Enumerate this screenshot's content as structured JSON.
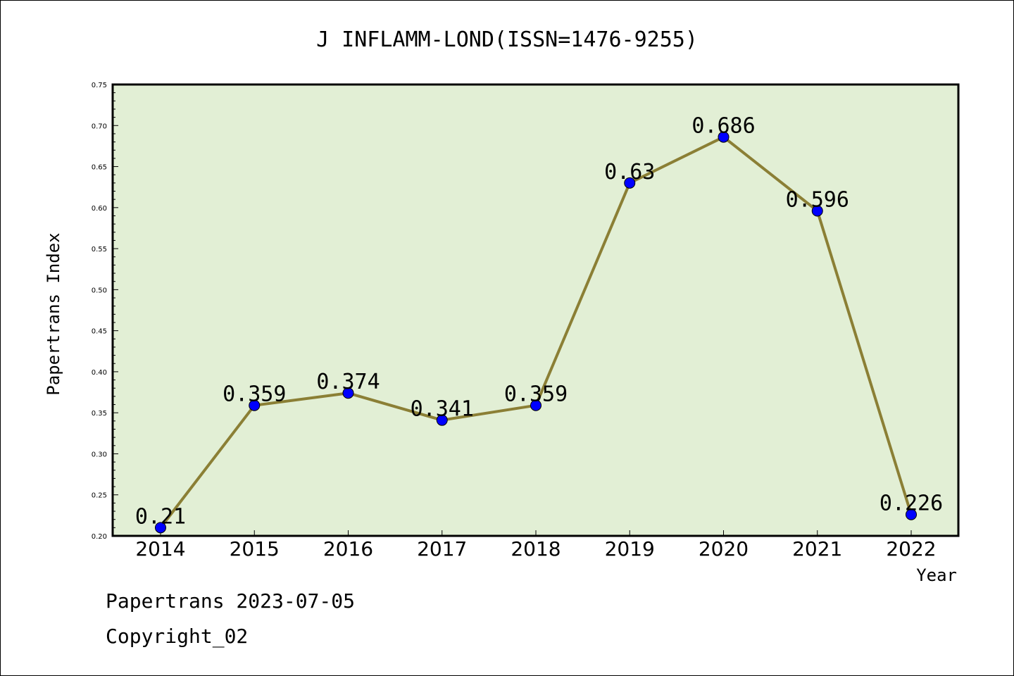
{
  "chart_data": {
    "type": "line",
    "title": "J INFLAMM-LOND(ISSN=1476-9255)",
    "xlabel": "Year",
    "ylabel": "Papertrans Index",
    "categories": [
      "2014",
      "2015",
      "2016",
      "2017",
      "2018",
      "2019",
      "2020",
      "2021",
      "2022"
    ],
    "values": [
      0.21,
      0.359,
      0.374,
      0.341,
      0.359,
      0.63,
      0.686,
      0.596,
      0.226
    ],
    "data_labels": [
      "0.21",
      "0.359",
      "0.374",
      "0.341",
      "0.359",
      "0.63",
      "0.686",
      "0.596",
      "0.226"
    ],
    "ylim": [
      0.2,
      0.75
    ],
    "yticks": [
      "0.20",
      "0.25",
      "0.30",
      "0.35",
      "0.40",
      "0.45",
      "0.50",
      "0.55",
      "0.60",
      "0.65",
      "0.70",
      "0.75"
    ],
    "colors": {
      "plot_background": "#e2efd5",
      "line": "#8b7f35",
      "marker": "#0000ff"
    }
  },
  "footer": {
    "line1": "Papertrans 2023-07-05",
    "line2": "Copyright_02"
  }
}
